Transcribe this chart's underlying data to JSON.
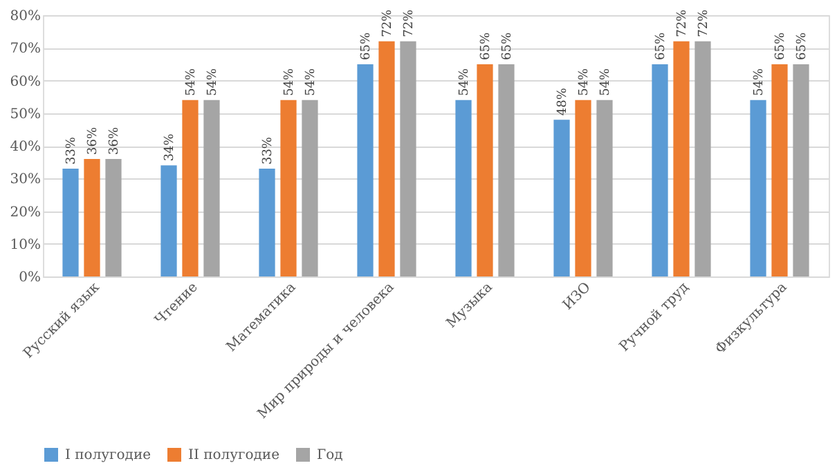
{
  "chart_data": {
    "type": "bar",
    "categories": [
      "Русский язык",
      "Чтение",
      "Математика",
      "Мир природы и человека",
      "Музыка",
      "ИЗО",
      "Ручной труд",
      "Физкультура"
    ],
    "series": [
      {
        "name": "I полугодие",
        "color": "#5b9bd5",
        "values": [
          33,
          34,
          33,
          65,
          54,
          48,
          65,
          54
        ],
        "value_labels": [
          "33%",
          "34%",
          "33%",
          "65%",
          "54%",
          "48%",
          "65%",
          "54%"
        ]
      },
      {
        "name": "II полугодие",
        "color": "#ed7d31",
        "values": [
          36,
          54,
          54,
          72,
          65,
          54,
          72,
          65
        ],
        "value_labels": [
          "36%",
          "54%",
          "54%",
          "72%",
          "65%",
          "54%",
          "72%",
          "65%"
        ]
      },
      {
        "name": "Год",
        "color": "#a5a5a5",
        "values": [
          36,
          54,
          54,
          72,
          65,
          54,
          72,
          65
        ],
        "value_labels": [
          "36%",
          "54%",
          "54%",
          "72%",
          "65%",
          "54%",
          "72%",
          "65%"
        ]
      }
    ],
    "ylim": [
      0,
      80
    ],
    "yticks": [
      {
        "value": 0,
        "label": "0%"
      },
      {
        "value": 10,
        "label": "10%"
      },
      {
        "value": 20,
        "label": "20%"
      },
      {
        "value": 30,
        "label": "30%"
      },
      {
        "value": 40,
        "label": "40%"
      },
      {
        "value": 50,
        "label": "50%"
      },
      {
        "value": 60,
        "label": "60%"
      },
      {
        "value": 70,
        "label": "70%"
      },
      {
        "value": 80,
        "label": "80%"
      }
    ],
    "grid": "y",
    "legend": "bottom"
  }
}
